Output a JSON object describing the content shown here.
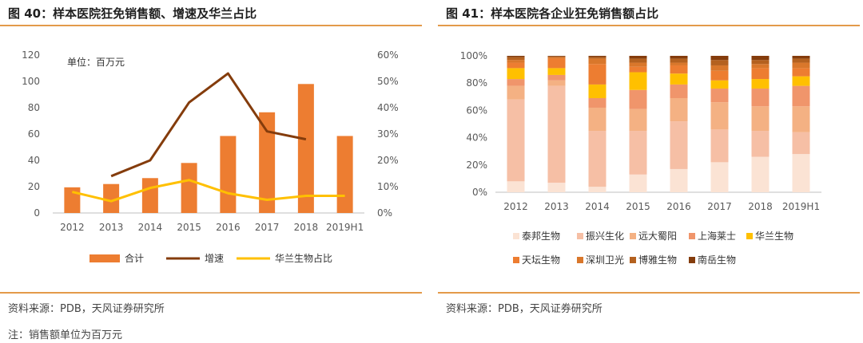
{
  "left": {
    "title": "图 40：样本医院狂免销售额、增速及华兰占比",
    "unit_note": "单位：百万元",
    "source": "资料来源：PDB，天风证券研究所",
    "note": "注：销售额单位为百万元"
  },
  "right": {
    "title": "图 41：样本医院各企业狂免销售额占比",
    "source": "资料来源：PDB，天风证券研究所"
  },
  "colors": {
    "rule": "#e39a4a",
    "bar": "#ed7d31",
    "growth": "#843c0c",
    "share": "#ffc000"
  },
  "chart_data": [
    {
      "type": "bar",
      "categories": [
        "2012",
        "2013",
        "2014",
        "2015",
        "2016",
        "2017",
        "2018",
        "2019H1"
      ],
      "series": [
        {
          "name": "合计",
          "type": "bar",
          "axis": "left",
          "values": [
            19.5,
            22,
            26.5,
            38,
            58.5,
            76.5,
            98,
            58.5
          ],
          "color": "#ed7d31"
        },
        {
          "name": "增速",
          "type": "line",
          "axis": "right",
          "values": [
            null,
            0.14,
            0.2,
            0.42,
            0.53,
            0.31,
            0.28,
            null
          ],
          "color": "#843c0c"
        },
        {
          "name": "华兰生物占比",
          "type": "line",
          "axis": "right",
          "values": [
            0.08,
            0.045,
            0.095,
            0.125,
            0.075,
            0.05,
            0.065,
            0.065
          ],
          "color": "#ffc000"
        }
      ],
      "ylim": [
        0,
        120
      ],
      "yticks": [
        0,
        20,
        40,
        60,
        80,
        100,
        120
      ],
      "y2lim": [
        0,
        0.6
      ],
      "y2ticks": [
        "0%",
        "10%",
        "20%",
        "30%",
        "40%",
        "50%",
        "60%"
      ],
      "legend_position": "bottom"
    },
    {
      "type": "bar",
      "stacked": true,
      "categories": [
        "2012",
        "2013",
        "2014",
        "2015",
        "2016",
        "2017",
        "2018",
        "2019H1"
      ],
      "series": [
        {
          "name": "泰邦生物",
          "color": "#fbe3d4",
          "values": [
            0.08,
            0.07,
            0.04,
            0.13,
            0.17,
            0.22,
            0.26,
            0.28
          ]
        },
        {
          "name": "振兴生化",
          "color": "#f6bfa5",
          "values": [
            0.6,
            0.71,
            0.41,
            0.32,
            0.35,
            0.24,
            0.19,
            0.16
          ]
        },
        {
          "name": "远大蜀阳",
          "color": "#f4b183",
          "values": [
            0.1,
            0.04,
            0.17,
            0.16,
            0.17,
            0.2,
            0.18,
            0.19
          ]
        },
        {
          "name": "上海莱士",
          "color": "#f0956b",
          "values": [
            0.05,
            0.04,
            0.07,
            0.14,
            0.1,
            0.1,
            0.13,
            0.15
          ]
        },
        {
          "name": "华兰生物",
          "color": "#ffc000",
          "values": [
            0.08,
            0.05,
            0.1,
            0.13,
            0.08,
            0.06,
            0.07,
            0.07
          ]
        },
        {
          "name": "天坛生物",
          "color": "#ed7d31",
          "values": [
            0.04,
            0.07,
            0.15,
            0.04,
            0.06,
            0.07,
            0.08,
            0.06
          ]
        },
        {
          "name": "深圳卫光",
          "color": "#d9772b",
          "values": [
            0.02,
            0.01,
            0.04,
            0.03,
            0.02,
            0.04,
            0.03,
            0.04
          ]
        },
        {
          "name": "博雅生物",
          "color": "#b4611f",
          "values": [
            0.02,
            0.005,
            0.01,
            0.03,
            0.03,
            0.04,
            0.03,
            0.03
          ]
        },
        {
          "name": "南岳生物",
          "color": "#843c0c",
          "values": [
            0.01,
            0.005,
            0.01,
            0.02,
            0.02,
            0.03,
            0.03,
            0.02
          ]
        }
      ],
      "ylim": [
        0,
        1
      ],
      "yticks": [
        "0%",
        "20%",
        "40%",
        "60%",
        "80%",
        "100%"
      ],
      "legend_position": "bottom"
    }
  ]
}
